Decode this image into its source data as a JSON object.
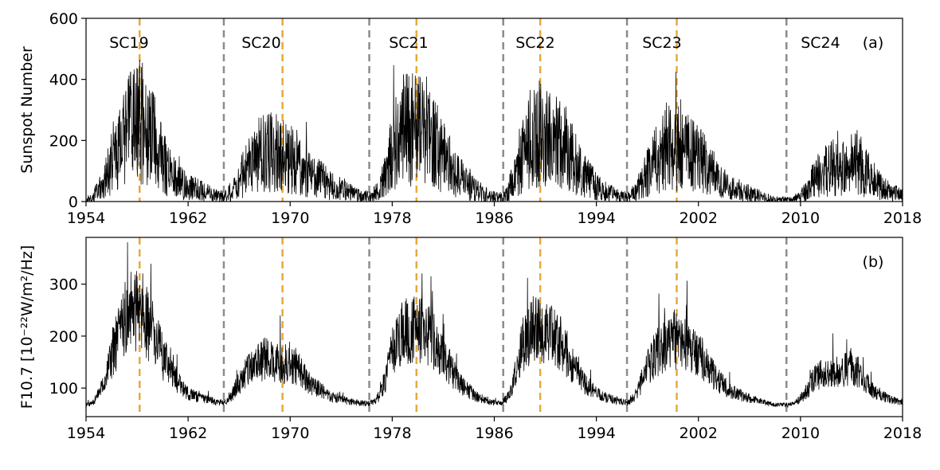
{
  "chart_data": [
    {
      "panel": "(a)",
      "type": "line",
      "ylabel": "Sunspot Number",
      "ylim": [
        0,
        600
      ],
      "yticks": [
        0,
        200,
        400,
        600
      ],
      "xlim": [
        1954,
        2018
      ],
      "xticks": [
        1954,
        1962,
        1970,
        1978,
        1986,
        1994,
        2002,
        2010,
        2018
      ],
      "grid": false,
      "cycle_labels": [
        "SC19",
        "SC20",
        "SC21",
        "SC22",
        "SC23",
        "SC24"
      ],
      "cycle_minima": [
        1964.8,
        1976.2,
        1986.7,
        1996.4,
        2008.9
      ],
      "cycle_maxima": [
        1958.2,
        1969.4,
        1979.9,
        1989.6,
        2000.3
      ],
      "series": [
        {
          "color": "#000000",
          "x": [
            1954.0,
            1954.5,
            1955.0,
            1955.5,
            1956.0,
            1956.5,
            1957.0,
            1957.5,
            1958.0,
            1958.5,
            1959.0,
            1959.5,
            1960.0,
            1960.5,
            1961.0,
            1961.5,
            1962.0,
            1962.5,
            1963.0,
            1963.5,
            1964.0,
            1964.5,
            1965.0,
            1965.5,
            1966.0,
            1966.5,
            1967.0,
            1967.5,
            1968.0,
            1968.5,
            1969.0,
            1969.5,
            1970.0,
            1970.5,
            1971.0,
            1971.5,
            1972.0,
            1972.5,
            1973.0,
            1973.5,
            1974.0,
            1974.5,
            1975.0,
            1975.5,
            1976.0,
            1976.5,
            1977.0,
            1977.5,
            1978.0,
            1978.5,
            1979.0,
            1979.5,
            1980.0,
            1980.5,
            1981.0,
            1981.5,
            1982.0,
            1982.5,
            1983.0,
            1983.5,
            1984.0,
            1984.5,
            1985.0,
            1985.5,
            1986.0,
            1986.5,
            1987.0,
            1987.5,
            1988.0,
            1988.5,
            1989.0,
            1989.5,
            1990.0,
            1990.5,
            1991.0,
            1991.5,
            1992.0,
            1992.5,
            1993.0,
            1993.5,
            1994.0,
            1994.5,
            1995.0,
            1995.5,
            1996.0,
            1996.5,
            1997.0,
            1997.5,
            1998.0,
            1998.5,
            1999.0,
            1999.5,
            2000.0,
            2000.5,
            2001.0,
            2001.5,
            2002.0,
            2002.5,
            2003.0,
            2003.5,
            2004.0,
            2004.5,
            2005.0,
            2005.5,
            2006.0,
            2006.5,
            2007.0,
            2007.5,
            2008.0,
            2008.5,
            2009.0,
            2009.5,
            2010.0,
            2010.5,
            2011.0,
            2011.5,
            2012.0,
            2012.5,
            2013.0,
            2013.5,
            2014.0,
            2014.5,
            2015.0,
            2015.5,
            2016.0,
            2016.5,
            2017.0,
            2017.5,
            2018.0
          ],
          "y": [
            5,
            10,
            40,
            70,
            130,
            180,
            210,
            240,
            270,
            250,
            220,
            180,
            130,
            100,
            80,
            60,
            50,
            40,
            35,
            30,
            20,
            15,
            20,
            40,
            70,
            100,
            130,
            150,
            160,
            165,
            160,
            150,
            140,
            130,
            110,
            90,
            80,
            70,
            55,
            45,
            40,
            30,
            25,
            20,
            15,
            20,
            40,
            90,
            160,
            210,
            240,
            250,
            240,
            220,
            210,
            180,
            150,
            120,
            90,
            70,
            50,
            40,
            25,
            20,
            15,
            10,
            30,
            70,
            120,
            180,
            210,
            220,
            210,
            200,
            200,
            180,
            150,
            120,
            90,
            70,
            50,
            40,
            30,
            20,
            15,
            15,
            30,
            60,
            100,
            130,
            150,
            170,
            180,
            175,
            170,
            150,
            140,
            120,
            90,
            70,
            60,
            50,
            40,
            35,
            25,
            20,
            15,
            10,
            5,
            5,
            5,
            5,
            20,
            40,
            70,
            90,
            100,
            110,
            110,
            120,
            140,
            130,
            100,
            80,
            60,
            45,
            30,
            25,
            20
          ]
        }
      ]
    },
    {
      "panel": "(b)",
      "type": "line",
      "ylabel": "F10.7 [10⁻²²W/m²/Hz]",
      "ylim": [
        45,
        390
      ],
      "yticks": [
        100,
        200,
        300
      ],
      "xlim": [
        1954,
        2018
      ],
      "xticks": [
        1954,
        1962,
        1970,
        1978,
        1986,
        1994,
        2002,
        2010,
        2018
      ],
      "grid": false,
      "cycle_minima": [
        1964.8,
        1976.2,
        1986.7,
        1996.4,
        2008.9
      ],
      "cycle_maxima": [
        1958.2,
        1969.4,
        1979.9,
        1989.6,
        2000.3
      ],
      "series": [
        {
          "color": "#000000",
          "x": [
            1954.0,
            1954.5,
            1955.0,
            1955.5,
            1956.0,
            1956.5,
            1957.0,
            1957.5,
            1958.0,
            1958.5,
            1959.0,
            1959.5,
            1960.0,
            1960.5,
            1961.0,
            1961.5,
            1962.0,
            1962.5,
            1963.0,
            1963.5,
            1964.0,
            1964.5,
            1965.0,
            1965.5,
            1966.0,
            1966.5,
            1967.0,
            1967.5,
            1968.0,
            1968.5,
            1969.0,
            1969.5,
            1970.0,
            1970.5,
            1971.0,
            1971.5,
            1972.0,
            1972.5,
            1973.0,
            1973.5,
            1974.0,
            1974.5,
            1975.0,
            1975.5,
            1976.0,
            1976.5,
            1977.0,
            1977.5,
            1978.0,
            1978.5,
            1979.0,
            1979.5,
            1980.0,
            1980.5,
            1981.0,
            1981.5,
            1982.0,
            1982.5,
            1983.0,
            1983.5,
            1984.0,
            1984.5,
            1985.0,
            1985.5,
            1986.0,
            1986.5,
            1987.0,
            1987.5,
            1988.0,
            1988.5,
            1989.0,
            1989.5,
            1990.0,
            1990.5,
            1991.0,
            1991.5,
            1992.0,
            1992.5,
            1993.0,
            1993.5,
            1994.0,
            1994.5,
            1995.0,
            1995.5,
            1996.0,
            1996.5,
            1997.0,
            1997.5,
            1998.0,
            1998.5,
            1999.0,
            1999.5,
            2000.0,
            2000.5,
            2001.0,
            2001.5,
            2002.0,
            2002.5,
            2003.0,
            2003.5,
            2004.0,
            2004.5,
            2005.0,
            2005.5,
            2006.0,
            2006.5,
            2007.0,
            2007.5,
            2008.0,
            2008.5,
            2009.0,
            2009.5,
            2010.0,
            2010.5,
            2011.0,
            2011.5,
            2012.0,
            2012.5,
            2013.0,
            2013.5,
            2014.0,
            2014.5,
            2015.0,
            2015.5,
            2016.0,
            2016.5,
            2017.0,
            2017.5,
            2018.0
          ],
          "y": [
            68,
            70,
            90,
            115,
            160,
            200,
            230,
            250,
            255,
            240,
            220,
            190,
            160,
            140,
            120,
            100,
            90,
            85,
            80,
            78,
            75,
            72,
            75,
            90,
            110,
            130,
            145,
            150,
            155,
            155,
            150,
            145,
            150,
            140,
            125,
            110,
            100,
            95,
            85,
            80,
            78,
            75,
            72,
            72,
            70,
            72,
            85,
            120,
            170,
            200,
            210,
            210,
            210,
            205,
            200,
            180,
            160,
            140,
            120,
            105,
            95,
            85,
            80,
            75,
            72,
            70,
            80,
            110,
            160,
            200,
            215,
            210,
            200,
            200,
            195,
            175,
            150,
            130,
            110,
            100,
            90,
            85,
            80,
            77,
            73,
            73,
            85,
            110,
            140,
            160,
            175,
            190,
            195,
            185,
            185,
            175,
            165,
            150,
            130,
            115,
            105,
            95,
            90,
            85,
            80,
            77,
            73,
            70,
            68,
            68,
            67,
            70,
            80,
            95,
            115,
            125,
            125,
            125,
            125,
            135,
            145,
            130,
            115,
            100,
            90,
            85,
            78,
            75,
            72
          ]
        }
      ]
    }
  ]
}
